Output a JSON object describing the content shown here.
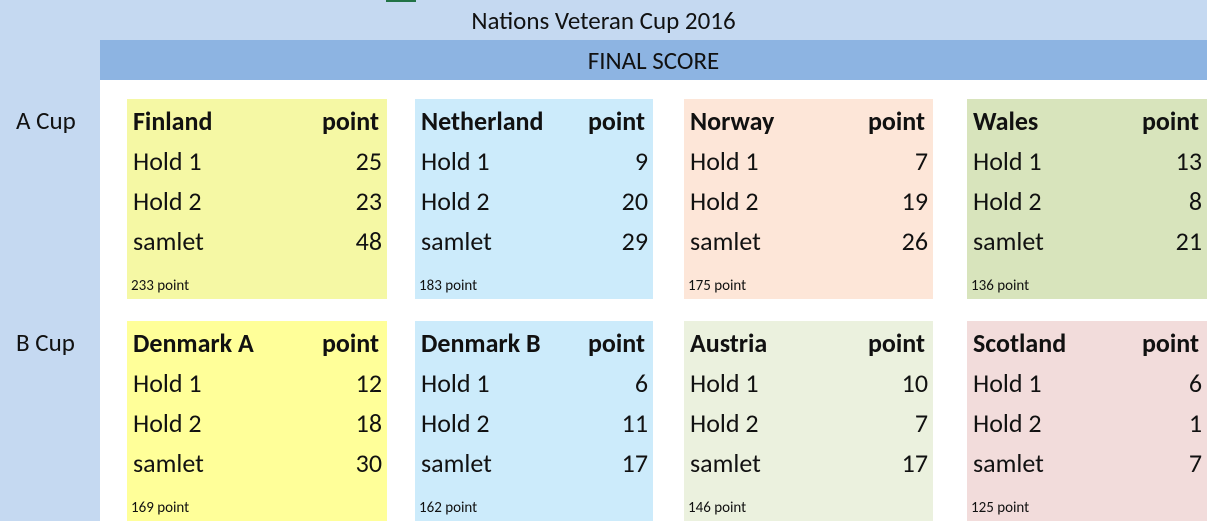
{
  "header": {
    "title": "Nations Veteran Cup 2016",
    "subtitle": "FINAL SCORE"
  },
  "cups": [
    {
      "label": "A Cup",
      "teams": [
        {
          "name": "Finland",
          "column": "point",
          "color": "#f5f8a4",
          "rows": [
            [
              "Hold 1",
              25
            ],
            [
              "Hold 2",
              23
            ],
            [
              "samlet",
              48
            ]
          ],
          "total": "233 point"
        },
        {
          "name": "Netherland",
          "column": "point",
          "color": "#ccebfb",
          "rows": [
            [
              "Hold 1",
              9
            ],
            [
              "Hold 2",
              20
            ],
            [
              "samlet",
              29
            ]
          ],
          "total": "183 point"
        },
        {
          "name": "Norway",
          "column": "point",
          "color": "#fde6d8",
          "rows": [
            [
              "Hold 1",
              7
            ],
            [
              "Hold 2",
              19
            ],
            [
              "samlet",
              26
            ]
          ],
          "total": "175 point"
        },
        {
          "name": "Wales",
          "column": "point",
          "color": "#d8e4bc",
          "rows": [
            [
              "Hold 1",
              13
            ],
            [
              "Hold 2",
              8
            ],
            [
              "samlet",
              21
            ]
          ],
          "total": "136 point"
        }
      ]
    },
    {
      "label": "B Cup",
      "teams": [
        {
          "name": "Denmark A",
          "column": "point",
          "color": "#ffff99",
          "rows": [
            [
              "Hold 1",
              12
            ],
            [
              "Hold 2",
              18
            ],
            [
              "samlet",
              30
            ]
          ],
          "total": "169 point"
        },
        {
          "name": "Denmark B",
          "column": "point",
          "color": "#ccebfb",
          "rows": [
            [
              "Hold 1",
              6
            ],
            [
              "Hold 2",
              11
            ],
            [
              "samlet",
              17
            ]
          ],
          "total": "162 point"
        },
        {
          "name": "Austria",
          "column": "point",
          "color": "#ebf1de",
          "rows": [
            [
              "Hold 1",
              10
            ],
            [
              "Hold 2",
              7
            ],
            [
              "samlet",
              17
            ]
          ],
          "total": "146 point"
        },
        {
          "name": "Scotland",
          "column": "point",
          "color": "#f2dcdb",
          "rows": [
            [
              "Hold 1",
              6
            ],
            [
              "Hold 2",
              1
            ],
            [
              "samlet",
              7
            ]
          ],
          "total": "125 point"
        }
      ]
    }
  ]
}
